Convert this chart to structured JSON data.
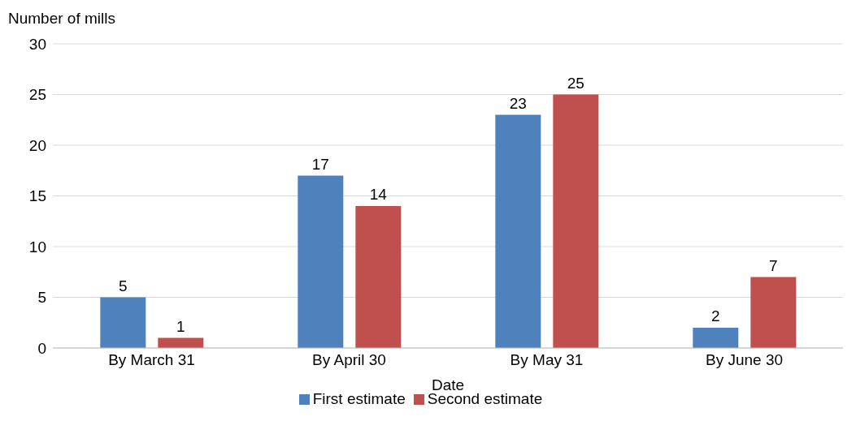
{
  "chart_data": {
    "type": "bar",
    "ylabel": "Number of mills",
    "xlabel": "Date",
    "categories": [
      "By March 31",
      "By April 30",
      "By May 31",
      "By June 30"
    ],
    "series": [
      {
        "name": "First estimate",
        "color": "#4f81bd",
        "values": [
          5,
          17,
          23,
          2
        ]
      },
      {
        "name": "Second estimate",
        "color": "#c0504d",
        "values": [
          1,
          14,
          25,
          7
        ]
      }
    ],
    "ylim": [
      0,
      30
    ],
    "yticks": [
      0,
      5,
      10,
      15,
      20,
      25,
      30
    ],
    "grid": "y",
    "legend": "bottom",
    "data_labels": true
  }
}
